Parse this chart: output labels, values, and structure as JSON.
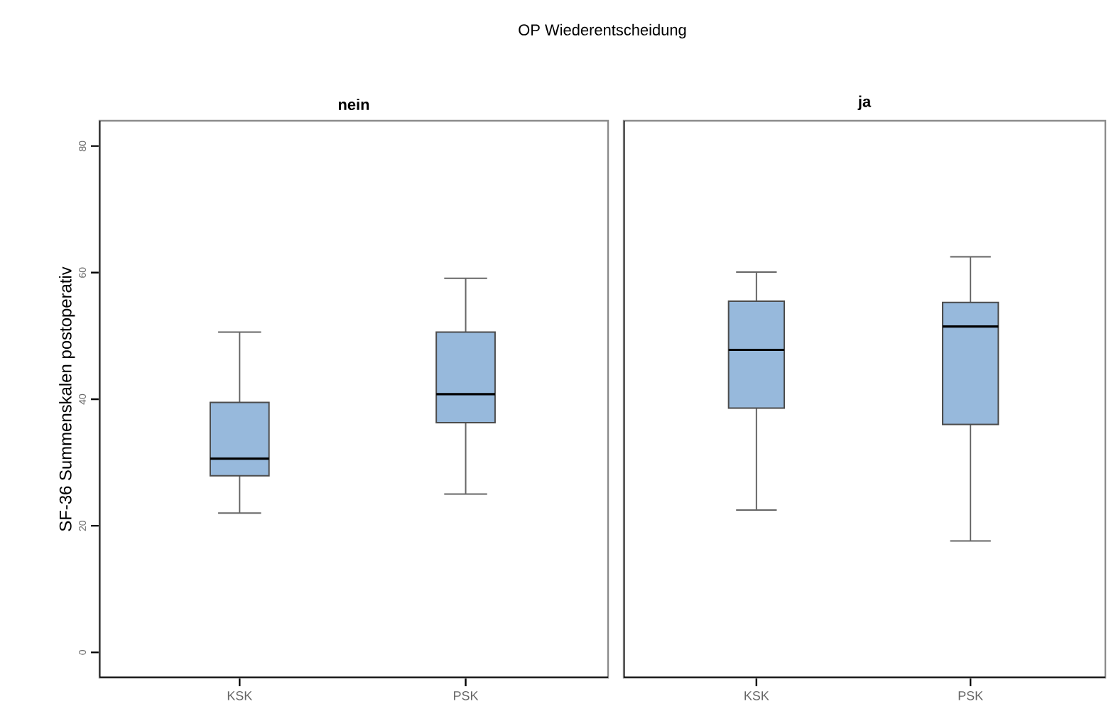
{
  "chart_data": [
    {
      "type": "box",
      "title": "nein",
      "ylabel": "SF-36 Summenskalen postoperativ",
      "annotations": [
        "OP Wiederentscheidung"
      ],
      "categories": [
        "KSK",
        "PSK"
      ],
      "color": "#97b9dc",
      "ylim": [
        -4,
        84
      ],
      "yticks": [
        0,
        20,
        40,
        60,
        80
      ],
      "tick_labels": "xy",
      "boxes": [
        {
          "low": 22.0,
          "q1": 27.9,
          "median": 30.6,
          "q3": 39.5,
          "high": 50.6
        },
        {
          "low": 25.0,
          "q1": 36.3,
          "median": 40.8,
          "q3": 50.6,
          "high": 59.1
        }
      ]
    },
    {
      "type": "box",
      "title": "ja",
      "categories": [
        "KSK",
        "PSK"
      ],
      "color": "#97b9dc",
      "ylim": [
        -4,
        84
      ],
      "tick_labels": "x",
      "boxes": [
        {
          "low": 22.5,
          "q1": 38.6,
          "median": 47.8,
          "q3": 55.5,
          "high": 60.1
        },
        {
          "low": 17.6,
          "q1": 36.0,
          "median": 51.5,
          "q3": 55.3,
          "high": 62.5
        }
      ]
    }
  ]
}
